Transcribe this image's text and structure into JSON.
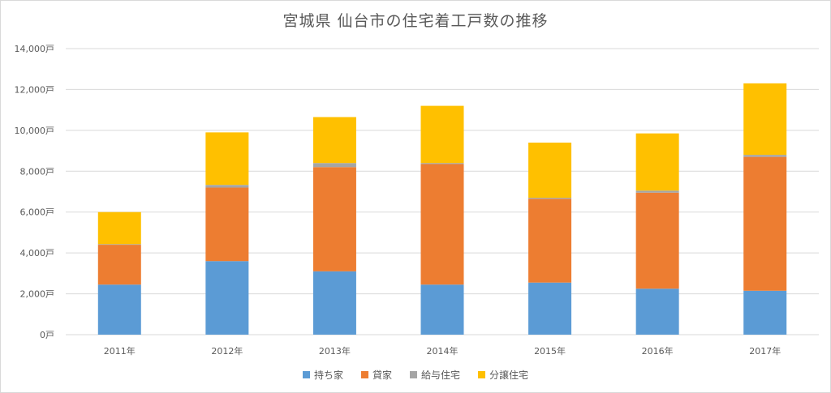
{
  "chart_data": {
    "type": "bar",
    "stacked": true,
    "title": "宮城県 仙台市の住宅着工戸数の推移",
    "categories": [
      "2011年",
      "2012年",
      "2013年",
      "2014年",
      "2015年",
      "2016年",
      "2017年"
    ],
    "series": [
      {
        "name": "持ち家",
        "color": "#5b9bd5",
        "values": [
          2450,
          3600,
          3100,
          2450,
          2550,
          2250,
          2150
        ]
      },
      {
        "name": "貸家",
        "color": "#ed7d31",
        "values": [
          1950,
          3600,
          5100,
          5900,
          4100,
          4700,
          6550
        ]
      },
      {
        "name": "給与住宅",
        "color": "#a5a5a5",
        "values": [
          30,
          130,
          200,
          50,
          50,
          100,
          100
        ]
      },
      {
        "name": "分譲住宅",
        "color": "#ffc000",
        "values": [
          1570,
          2570,
          2250,
          2800,
          2700,
          2800,
          3500
        ]
      }
    ],
    "ylim": [
      0,
      14000
    ],
    "yticks": [
      0,
      2000,
      4000,
      6000,
      8000,
      10000,
      12000,
      14000
    ],
    "ytick_labels": [
      "0戸",
      "2,000戸",
      "4,000戸",
      "6,000戸",
      "8,000戸",
      "10,000戸",
      "12,000戸",
      "14,000戸"
    ],
    "grid": true,
    "legend_position": "bottom"
  }
}
